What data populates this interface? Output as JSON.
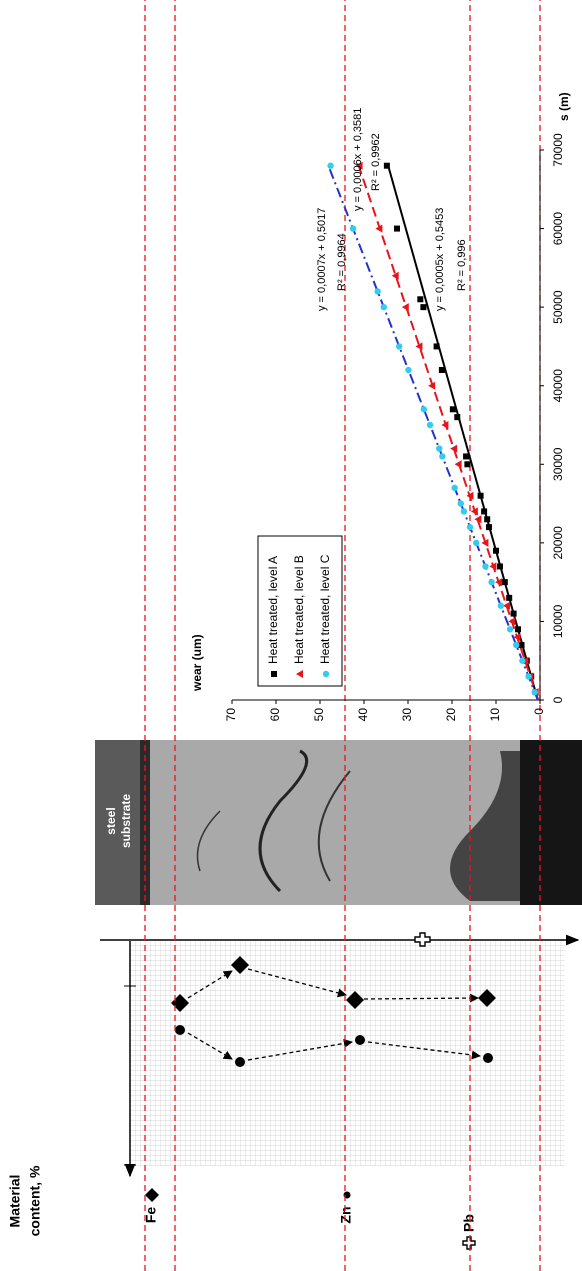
{
  "material_panel": {
    "title_lines": [
      "Material",
      "content, %"
    ],
    "labels": [
      "Fe",
      "Zn",
      "Pb"
    ]
  },
  "micrograph": {
    "label_lines": [
      "steel",
      "substrate"
    ]
  },
  "chart_data": {
    "type": "scatter",
    "x_label": "s (m)",
    "y_label": "wear (um)",
    "xlim": [
      0,
      70000
    ],
    "ylim": [
      0,
      70
    ],
    "xticks": [
      0,
      10000,
      20000,
      30000,
      40000,
      50000,
      60000,
      70000
    ],
    "yticks": [
      0,
      10,
      20,
      30,
      40,
      50,
      60,
      70
    ],
    "legend": "upper left",
    "series": [
      {
        "name": "Heat treated, level A",
        "color": "#000000",
        "marker": "square",
        "x": [
          1000,
          3000,
          5000,
          7000,
          9000,
          11000,
          13000,
          15000,
          17000,
          19000,
          22000,
          23000,
          24000,
          26000,
          30000,
          31000,
          36000,
          37000,
          42000,
          45000,
          50000,
          51000,
          60000,
          68000
        ],
        "values": [
          1.0,
          2.0,
          3.0,
          4.2,
          5.0,
          6.0,
          7.0,
          8.0,
          9.1,
          10.0,
          11.6,
          12.0,
          12.7,
          13.5,
          16.5,
          16.8,
          18.8,
          19.8,
          22.3,
          23.5,
          26.5,
          27.2,
          32.5,
          34.8
        ],
        "trend": {
          "x": [
            0,
            68000
          ],
          "values": [
            0.5,
            34.5
          ],
          "color": "#000000",
          "dash": "solid",
          "equation": "y = 0,0005x + 0,5453",
          "r2": "R² = 0,996"
        }
      },
      {
        "name": "Heat treated, level B",
        "color": "#e8141c",
        "marker": "triangle",
        "x": [
          1000,
          3000,
          5000,
          8000,
          10000,
          12000,
          15000,
          17000,
          20000,
          23000,
          24000,
          26000,
          30000,
          32000,
          35000,
          40000,
          45000,
          50000,
          54000,
          60000,
          68000
        ],
        "values": [
          1.0,
          2.2,
          3.3,
          5.1,
          6.3,
          7.5,
          9.3,
          10.6,
          12.4,
          14.0,
          14.8,
          15.8,
          18.5,
          19.5,
          21.5,
          24.5,
          27.4,
          30.5,
          32.8,
          36.5,
          41.0
        ],
        "trend": {
          "x": [
            0,
            68000
          ],
          "values": [
            0.4,
            41.2
          ],
          "color": "#e8141c",
          "dash": "dash",
          "equation": "y = 0,0006x + 0,3581",
          "r2": "R² = 0,9962"
        }
      },
      {
        "name": "Heat treated, level C",
        "color": "#33ccee",
        "marker": "circle",
        "x": [
          1000,
          3000,
          5000,
          7000,
          9000,
          12000,
          15000,
          17000,
          20000,
          22000,
          24000,
          25000,
          27000,
          31000,
          32000,
          35000,
          37000,
          42000,
          45000,
          50000,
          52000,
          60000,
          68000
        ],
        "values": [
          1.2,
          2.6,
          4.0,
          5.4,
          6.8,
          8.9,
          11.0,
          12.4,
          14.5,
          15.9,
          17.3,
          18.0,
          19.4,
          22.2,
          22.9,
          25.0,
          26.4,
          29.9,
          32.0,
          35.5,
          36.9,
          42.5,
          47.6
        ],
        "trend": {
          "x": [
            0,
            68000
          ],
          "values": [
            0.5,
            48.1
          ],
          "color": "#2233cc",
          "dash": "dashdot",
          "equation": "y = 0,0007x + 0,5017",
          "r2": "R² = 0,9964"
        }
      }
    ]
  }
}
